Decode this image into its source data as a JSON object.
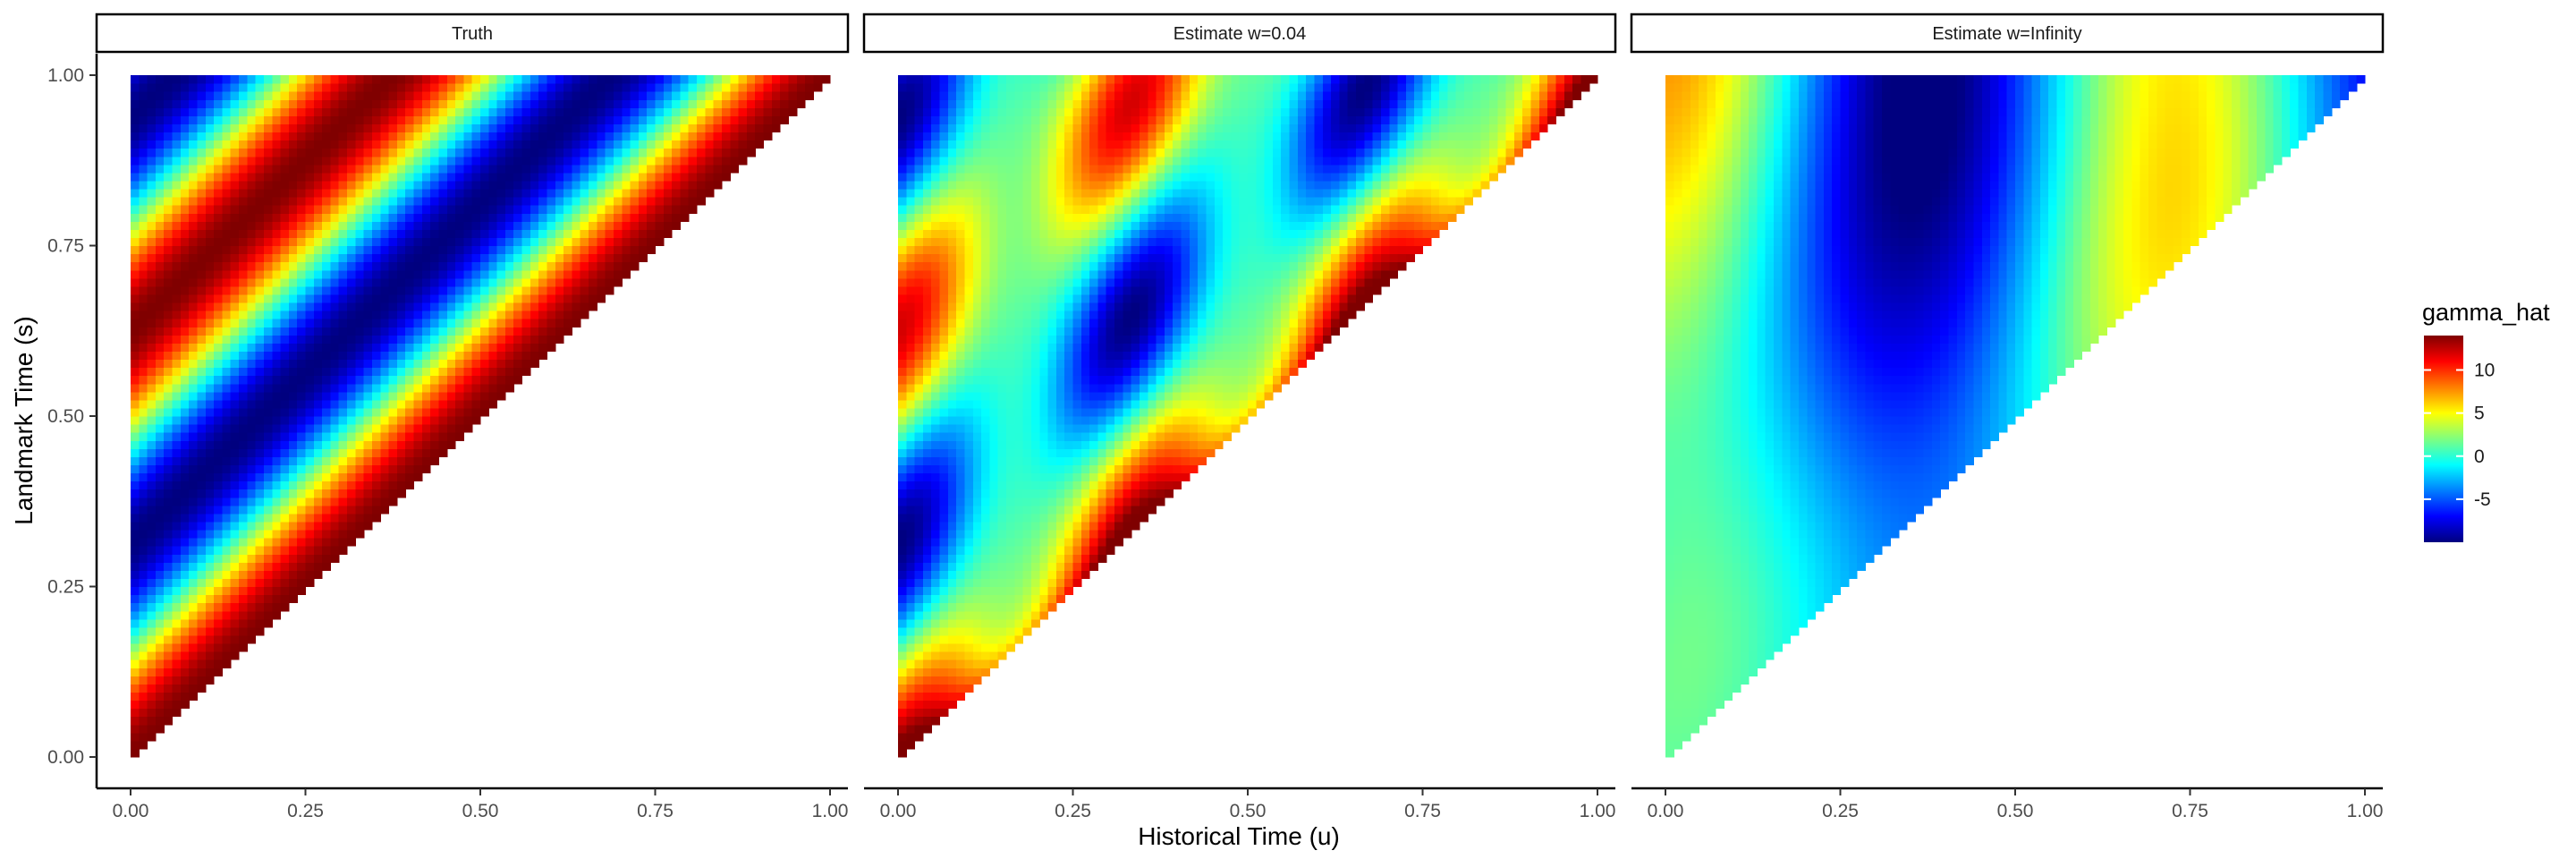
{
  "chart_data": {
    "type": "heatmap",
    "xlabel": "Historical Time (u)",
    "ylabel": "Landmark Time (s)",
    "xlim": [
      0,
      1
    ],
    "ylim": [
      0,
      1
    ],
    "x_ticks": [
      "0.00",
      "0.25",
      "0.50",
      "0.75",
      "1.00"
    ],
    "y_ticks": [
      "0.00",
      "0.25",
      "0.50",
      "0.75",
      "1.00"
    ],
    "domain_note": "cells only where u <= s",
    "grid": false,
    "legend": {
      "title": "gamma_hat",
      "placement": "right",
      "range": [
        -10,
        14
      ],
      "ticks": [
        "10",
        "5",
        "0",
        "-5"
      ],
      "colormap": [
        "#00007f",
        "#0000ff",
        "#007fff",
        "#00ffff",
        "#7fff7f",
        "#ffff00",
        "#ff7f00",
        "#ff0000",
        "#7f0000"
      ]
    },
    "panels": [
      {
        "title": "Truth"
      },
      {
        "title": "Estimate w=0.04"
      },
      {
        "title": "Estimate w=Infinity"
      }
    ]
  }
}
